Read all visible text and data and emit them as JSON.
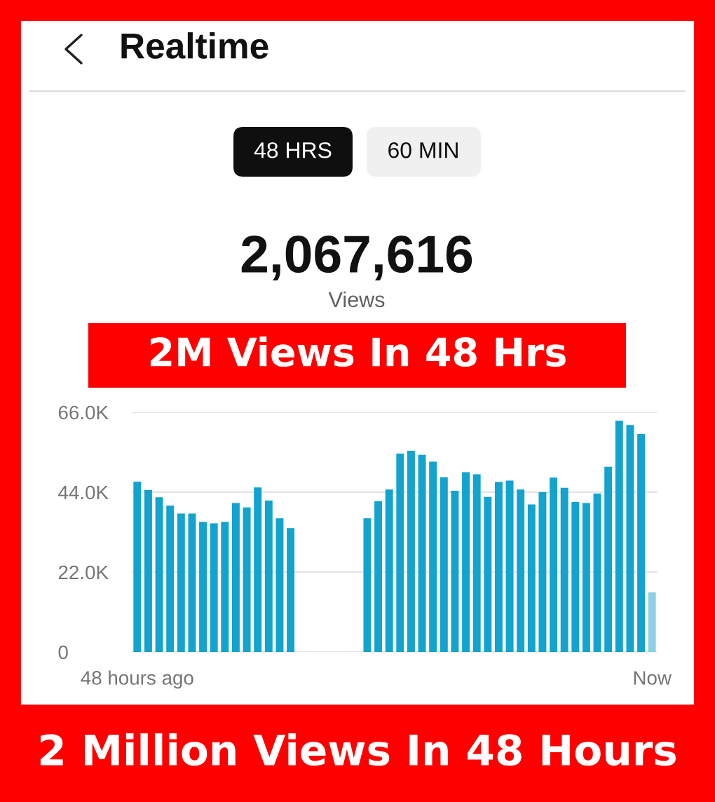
{
  "chart_data": {
    "type": "bar",
    "title": "Realtime",
    "categories": [
      "48 hours ago",
      null,
      null,
      null,
      null,
      null,
      null,
      null,
      null,
      null,
      null,
      null,
      null,
      null,
      null,
      null,
      null,
      null,
      null,
      null,
      null,
      null,
      null,
      null,
      null,
      null,
      null,
      null,
      null,
      null,
      null,
      null,
      null,
      null,
      null,
      null,
      null,
      null,
      null,
      null,
      null,
      null,
      null,
      null,
      null,
      null,
      null,
      "Now"
    ],
    "values": [
      46900,
      44600,
      42600,
      40300,
      38100,
      38100,
      35800,
      35400,
      35800,
      41000,
      39800,
      45300,
      41700,
      36800,
      34100,
      null,
      null,
      null,
      null,
      null,
      null,
      36800,
      41500,
      44700,
      54600,
      55400,
      54300,
      52400,
      48100,
      44400,
      49500,
      48900,
      42700,
      46800,
      47200,
      44700,
      40600,
      44000,
      48000,
      45200,
      41300,
      41000,
      43600,
      51000,
      63700,
      62500,
      60000,
      16400
    ],
    "colors": [
      "#13a3cf",
      "#13a3cf",
      "#13a3cf",
      "#13a3cf",
      "#13a3cf",
      "#13a3cf",
      "#13a3cf",
      "#13a3cf",
      "#13a3cf",
      "#13a3cf",
      "#13a3cf",
      "#13a3cf",
      "#13a3cf",
      "#13a3cf",
      "#13a3cf",
      "#13a3cf",
      "#13a3cf",
      "#13a3cf",
      "#13a3cf",
      "#13a3cf",
      "#13a3cf",
      "#13a3cf",
      "#13a3cf",
      "#13a3cf",
      "#13a3cf",
      "#13a3cf",
      "#13a3cf",
      "#13a3cf",
      "#13a3cf",
      "#13a3cf",
      "#13a3cf",
      "#13a3cf",
      "#13a3cf",
      "#13a3cf",
      "#13a3cf",
      "#13a3cf",
      "#13a3cf",
      "#13a3cf",
      "#13a3cf",
      "#13a3cf",
      "#13a3cf",
      "#13a3cf",
      "#13a3cf",
      "#13a3cf",
      "#13a3cf",
      "#13a3cf",
      "#13a3cf",
      "#8dd0e6"
    ],
    "ylim": [
      0,
      66000
    ],
    "yticks": [
      0,
      {
        "value": 22000,
        "label": "22.0K"
      },
      {
        "value": 44000,
        "label": "44.0K"
      },
      {
        "value": 66000,
        "label": "66.0K"
      }
    ],
    "grid": "y",
    "annotations": [
      "48 HRS",
      "60 MIN",
      "2,067,616",
      "Views",
      "2M Views In 48 Hrs",
      "2 Million Views In 48 Hours"
    ]
  }
}
